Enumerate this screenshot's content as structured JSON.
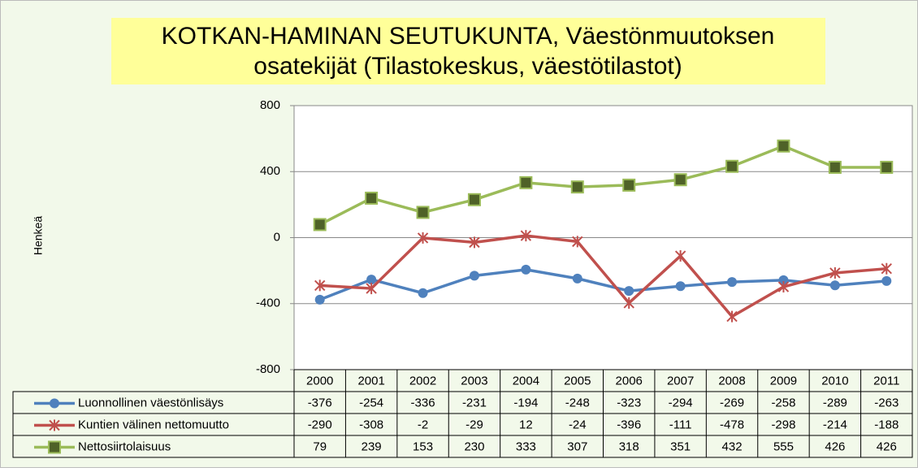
{
  "chart_data": {
    "type": "line",
    "title": [
      "KOTKAN-HAMINAN SEUTUKUNTA, Väestönmuutoksen",
      "osatekijät (Tilastokeskus, väestötilastot)"
    ],
    "ylabel": "Henkeä",
    "categories": [
      "2000",
      "2001",
      "2002",
      "2003",
      "2004",
      "2005",
      "2006",
      "2007",
      "2008",
      "2009",
      "2010",
      "2011"
    ],
    "ylim": [
      -800,
      800
    ],
    "yticks": [
      -800,
      -400,
      0,
      400,
      800
    ],
    "grid": true,
    "series": [
      {
        "name": "Luonnollinen väestönlisäys",
        "color": "#4f81bd",
        "marker": "circle",
        "values": [
          -376,
          -254,
          -336,
          -231,
          -194,
          -248,
          -323,
          -294,
          -269,
          -258,
          -289,
          -263
        ]
      },
      {
        "name": "Kuntien välinen nettomuutto",
        "color": "#c0504d",
        "marker": "star",
        "values": [
          -290,
          -308,
          -2,
          -29,
          12,
          -24,
          -396,
          -111,
          -478,
          -298,
          -214,
          -188
        ]
      },
      {
        "name": "Nettosiirtolaisuus",
        "color": "#9bbb59",
        "marker": "square",
        "values": [
          79,
          239,
          153,
          230,
          333,
          307,
          318,
          351,
          432,
          555,
          426,
          426
        ]
      }
    ]
  }
}
